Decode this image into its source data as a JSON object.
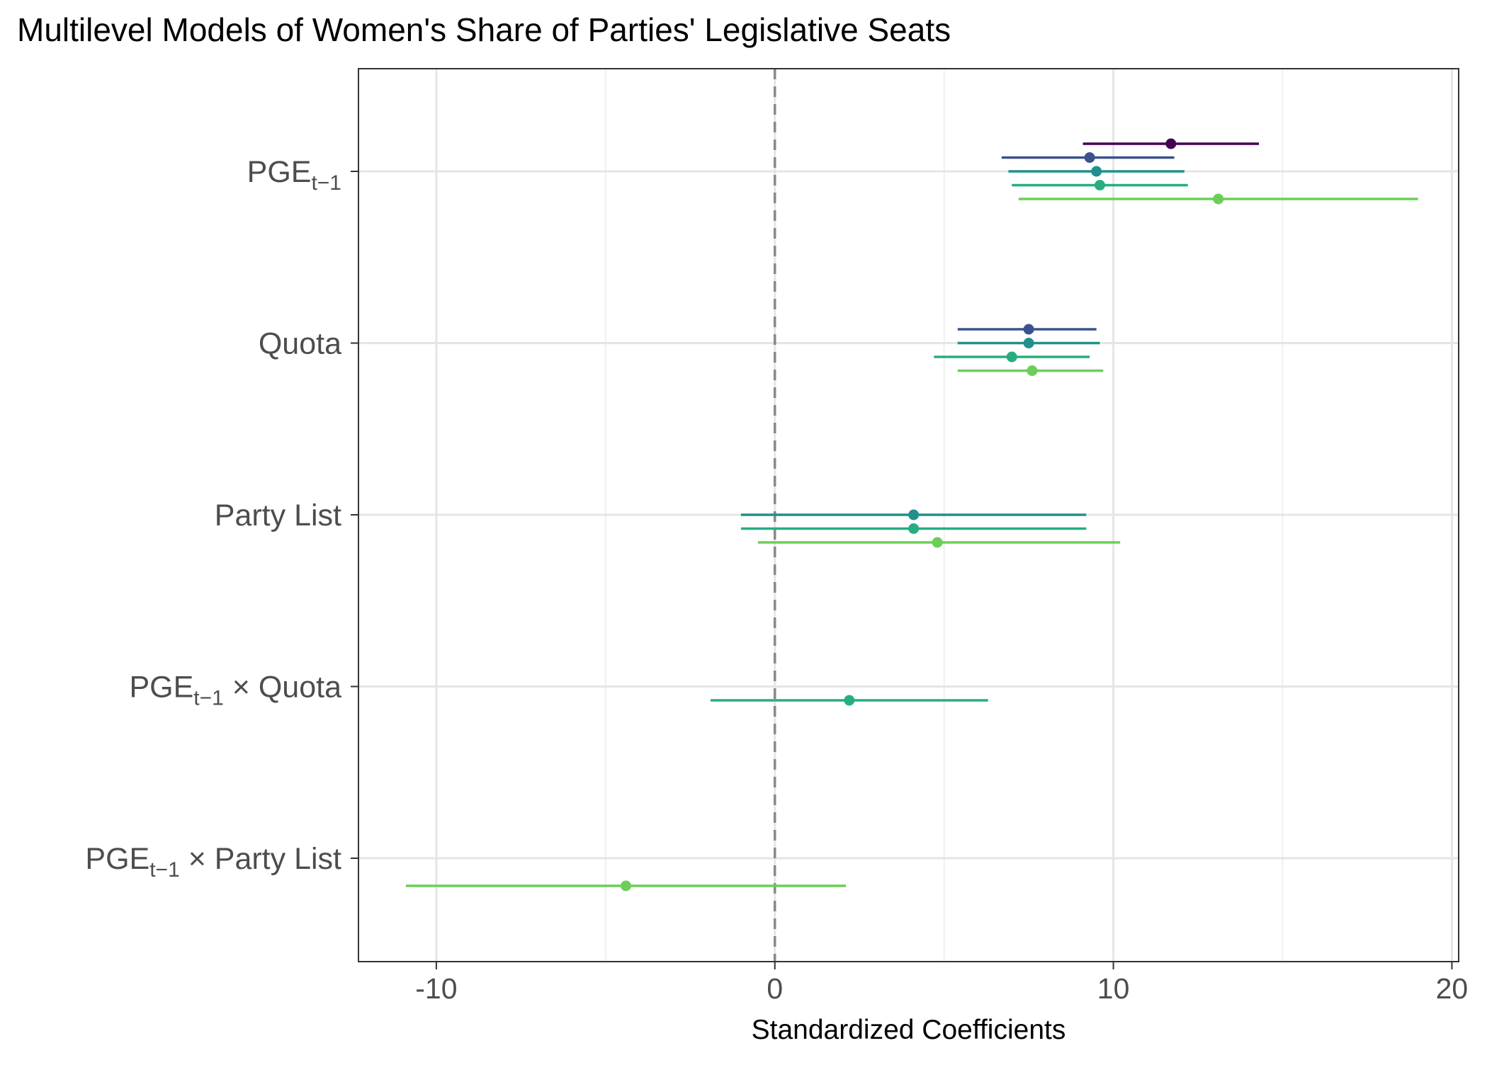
{
  "chart_data": {
    "type": "coefficient-plot",
    "title": "Multilevel Models of Women's Share of Parties' Legislative Seats",
    "xlabel": "Standardized Coefficients",
    "ylabel": "",
    "xlim": [
      -12.3,
      20.2
    ],
    "x_ticks": [
      -10,
      0,
      10,
      20
    ],
    "x_tick_labels": [
      "-10",
      "0",
      "10",
      "20"
    ],
    "x_minor_gridlines": [
      -5,
      5,
      15
    ],
    "reference_line": 0,
    "grid": true,
    "legend": "none",
    "series_colors": [
      "#440154",
      "#3b528b",
      "#21908c",
      "#27ad81",
      "#6cce59"
    ],
    "terms": [
      {
        "label": {
          "base": "PGE",
          "sub": "t−1",
          "suffix": ""
        },
        "estimates": [
          {
            "model": 1,
            "coef": 11.7,
            "lo": 9.1,
            "hi": 14.3
          },
          {
            "model": 2,
            "coef": 9.3,
            "lo": 6.7,
            "hi": 11.8
          },
          {
            "model": 3,
            "coef": 9.5,
            "lo": 6.9,
            "hi": 12.1
          },
          {
            "model": 4,
            "coef": 9.6,
            "lo": 7.0,
            "hi": 12.2
          },
          {
            "model": 5,
            "coef": 13.1,
            "lo": 7.2,
            "hi": 19.0
          }
        ]
      },
      {
        "label": {
          "base": "Quota",
          "sub": "",
          "suffix": ""
        },
        "estimates": [
          {
            "model": 2,
            "coef": 7.5,
            "lo": 5.4,
            "hi": 9.5
          },
          {
            "model": 3,
            "coef": 7.5,
            "lo": 5.4,
            "hi": 9.6
          },
          {
            "model": 4,
            "coef": 7.0,
            "lo": 4.7,
            "hi": 9.3
          },
          {
            "model": 5,
            "coef": 7.6,
            "lo": 5.4,
            "hi": 9.7
          }
        ]
      },
      {
        "label": {
          "base": "Party List",
          "sub": "",
          "suffix": ""
        },
        "estimates": [
          {
            "model": 3,
            "coef": 4.1,
            "lo": -1.0,
            "hi": 9.2
          },
          {
            "model": 4,
            "coef": 4.1,
            "lo": -1.0,
            "hi": 9.2
          },
          {
            "model": 5,
            "coef": 4.8,
            "lo": -0.5,
            "hi": 10.2
          }
        ]
      },
      {
        "label": {
          "base": "PGE",
          "sub": "t−1",
          "suffix": " × Quota"
        },
        "estimates": [
          {
            "model": 4,
            "coef": 2.2,
            "lo": -1.9,
            "hi": 6.3
          }
        ]
      },
      {
        "label": {
          "base": "PGE",
          "sub": "t−1",
          "suffix": " × Party List"
        },
        "estimates": [
          {
            "model": 5,
            "coef": -4.4,
            "lo": -10.9,
            "hi": 2.1
          }
        ]
      }
    ]
  }
}
